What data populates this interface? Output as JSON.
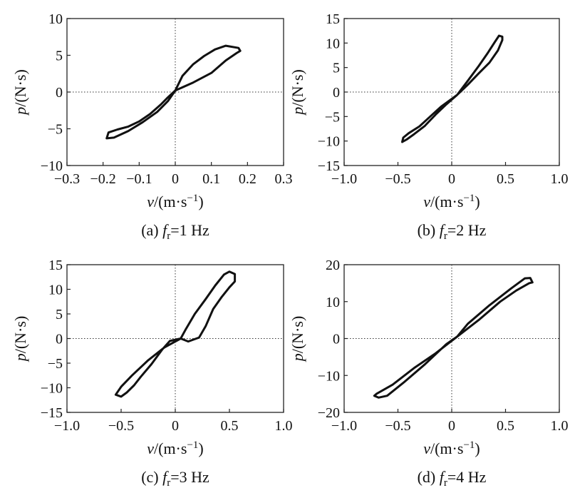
{
  "chart_data": [
    {
      "type": "line",
      "caption_prefix": "(a) ",
      "caption_symbol": "f",
      "caption_sub": "r",
      "caption_value": "=1 Hz",
      "ylabel_var": "p",
      "ylabel_unit": "/(N·s)",
      "xlabel_var": "v",
      "xlabel_unit": "/(m·s",
      "xlabel_exp": "−1",
      "xlabel_close": ")",
      "xlim": [
        -0.3,
        0.3
      ],
      "ylim": [
        -10,
        10
      ],
      "xticks": [
        -0.3,
        -0.2,
        -0.1,
        0,
        0.1,
        0.2,
        0.3
      ],
      "xtick_labels": [
        "−0.3",
        "−0.2",
        "−0.1",
        "0",
        "0.1",
        "0.2",
        "0.3"
      ],
      "yticks": [
        -10,
        -5,
        0,
        5,
        10
      ],
      "ytick_labels": [
        "−10",
        "−5",
        "0",
        "5",
        "10"
      ],
      "grid": false,
      "series": [
        {
          "values": [
            [
              0.0,
              0.2
            ],
            [
              0.05,
              1.3
            ],
            [
              0.1,
              2.6
            ],
            [
              0.14,
              4.3
            ],
            [
              0.17,
              5.3
            ],
            [
              0.18,
              5.6
            ],
            [
              0.175,
              6.0
            ],
            [
              0.14,
              6.3
            ],
            [
              0.11,
              5.8
            ],
            [
              0.08,
              4.9
            ],
            [
              0.05,
              3.8
            ],
            [
              0.02,
              2.2
            ],
            [
              0.0,
              0.2
            ],
            [
              -0.02,
              -1.2
            ],
            [
              -0.05,
              -2.7
            ],
            [
              -0.09,
              -4.1
            ],
            [
              -0.13,
              -5.3
            ],
            [
              -0.17,
              -6.2
            ],
            [
              -0.19,
              -6.3
            ],
            [
              -0.185,
              -5.5
            ],
            [
              -0.16,
              -5.1
            ],
            [
              -0.13,
              -4.7
            ],
            [
              -0.1,
              -4.0
            ],
            [
              -0.07,
              -3.0
            ],
            [
              -0.04,
              -1.7
            ],
            [
              -0.02,
              -0.7
            ],
            [
              0.0,
              0.2
            ]
          ]
        }
      ]
    },
    {
      "type": "line",
      "caption_prefix": "(b) ",
      "caption_symbol": "f",
      "caption_sub": "r",
      "caption_value": "=2 Hz",
      "ylabel_var": "p",
      "ylabel_unit": "/(N·s)",
      "xlabel_var": "v",
      "xlabel_unit": "/(m·s",
      "xlabel_exp": "−1",
      "xlabel_close": ")",
      "xlim": [
        -1.0,
        1.0
      ],
      "ylim": [
        -15,
        15
      ],
      "xticks": [
        -1.0,
        -0.5,
        0,
        0.5,
        1.0
      ],
      "xtick_labels": [
        "−1.0",
        "−0.5",
        "0",
        "0.5",
        "1.0"
      ],
      "yticks": [
        -15,
        -10,
        -5,
        0,
        5,
        10,
        15
      ],
      "ytick_labels": [
        "−15",
        "−10",
        "−5",
        "0",
        "5",
        "10",
        "15"
      ],
      "grid": false,
      "series": [
        {
          "values": [
            [
              0.05,
              -0.6
            ],
            [
              0.15,
              1.5
            ],
            [
              0.25,
              3.8
            ],
            [
              0.35,
              6.0
            ],
            [
              0.43,
              8.5
            ],
            [
              0.47,
              10.6
            ],
            [
              0.47,
              11.3
            ],
            [
              0.44,
              11.5
            ],
            [
              0.4,
              10.2
            ],
            [
              0.33,
              7.8
            ],
            [
              0.25,
              5.3
            ],
            [
              0.15,
              2.3
            ],
            [
              0.05,
              -0.6
            ],
            [
              -0.05,
              -2.5
            ],
            [
              -0.15,
              -4.6
            ],
            [
              -0.25,
              -6.9
            ],
            [
              -0.35,
              -8.6
            ],
            [
              -0.42,
              -9.7
            ],
            [
              -0.46,
              -10.2
            ],
            [
              -0.45,
              -9.3
            ],
            [
              -0.4,
              -8.4
            ],
            [
              -0.3,
              -7.0
            ],
            [
              -0.2,
              -5.0
            ],
            [
              -0.1,
              -3.0
            ],
            [
              0.0,
              -1.4
            ],
            [
              0.05,
              -0.6
            ]
          ]
        }
      ]
    },
    {
      "type": "line",
      "caption_prefix": "(c) ",
      "caption_symbol": "f",
      "caption_sub": "r",
      "caption_value": "=3 Hz",
      "ylabel_var": "p",
      "ylabel_unit": "/(N·s)",
      "xlabel_var": "v",
      "xlabel_unit": "/(m·s",
      "xlabel_exp": "−1",
      "xlabel_close": ")",
      "xlim": [
        -1.0,
        1.0
      ],
      "ylim": [
        -15,
        15
      ],
      "xticks": [
        -1.0,
        -0.5,
        0,
        0.5,
        1.0
      ],
      "xtick_labels": [
        "−1.0",
        "−0.5",
        "0",
        "0.5",
        "1.0"
      ],
      "yticks": [
        -15,
        -10,
        -5,
        0,
        5,
        10,
        15
      ],
      "ytick_labels": [
        "−15",
        "−10",
        "−5",
        "0",
        "5",
        "10",
        "15"
      ],
      "grid": false,
      "series": [
        {
          "values": [
            [
              0.05,
              0.0
            ],
            [
              0.1,
              2.0
            ],
            [
              0.18,
              5.0
            ],
            [
              0.28,
              8.0
            ],
            [
              0.37,
              10.8
            ],
            [
              0.45,
              13.0
            ],
            [
              0.5,
              13.6
            ],
            [
              0.55,
              13.1
            ],
            [
              0.55,
              11.6
            ],
            [
              0.5,
              10.4
            ],
            [
              0.43,
              8.5
            ],
            [
              0.35,
              6.0
            ],
            [
              0.28,
              2.5
            ],
            [
              0.22,
              0.2
            ],
            [
              0.12,
              -0.6
            ],
            [
              0.05,
              0.0
            ],
            [
              -0.1,
              -1.8
            ],
            [
              -0.25,
              -4.4
            ],
            [
              -0.4,
              -7.5
            ],
            [
              -0.5,
              -9.8
            ],
            [
              -0.55,
              -11.4
            ],
            [
              -0.5,
              -11.8
            ],
            [
              -0.45,
              -11.0
            ],
            [
              -0.38,
              -9.5
            ],
            [
              -0.32,
              -7.8
            ],
            [
              -0.22,
              -5.2
            ],
            [
              -0.12,
              -2.2
            ],
            [
              -0.05,
              -0.5
            ],
            [
              0.05,
              0.0
            ]
          ]
        }
      ]
    },
    {
      "type": "line",
      "caption_prefix": "(d) ",
      "caption_symbol": "f",
      "caption_sub": "r",
      "caption_value": "=4 Hz",
      "ylabel_var": "p",
      "ylabel_unit": "/(N·s)",
      "xlabel_var": "v",
      "xlabel_unit": "/(m·s",
      "xlabel_exp": "−1",
      "xlabel_close": ")",
      "xlim": [
        -1.0,
        1.0
      ],
      "ylim": [
        -20,
        20
      ],
      "xticks": [
        -1.0,
        -0.5,
        0,
        0.5,
        1.0
      ],
      "xtick_labels": [
        "−1.0",
        "−0.5",
        "0",
        "0.5",
        "1.0"
      ],
      "yticks": [
        -20,
        -10,
        0,
        10,
        20
      ],
      "ytick_labels": [
        "−20",
        "−10",
        "0",
        "10",
        "20"
      ],
      "grid": false,
      "series": [
        {
          "values": [
            [
              0.05,
              0.5
            ],
            [
              0.25,
              5.0
            ],
            [
              0.45,
              10.0
            ],
            [
              0.6,
              13.0
            ],
            [
              0.72,
              15.0
            ],
            [
              0.75,
              15.2
            ],
            [
              0.73,
              16.4
            ],
            [
              0.68,
              16.3
            ],
            [
              0.55,
              13.5
            ],
            [
              0.35,
              9.0
            ],
            [
              0.15,
              4.0
            ],
            [
              0.05,
              0.5
            ],
            [
              -0.15,
              -4.0
            ],
            [
              -0.35,
              -8.0
            ],
            [
              -0.55,
              -12.5
            ],
            [
              -0.7,
              -15.0
            ],
            [
              -0.72,
              -15.5
            ],
            [
              -0.68,
              -16.0
            ],
            [
              -0.6,
              -15.5
            ],
            [
              -0.45,
              -12.0
            ],
            [
              -0.25,
              -7.0
            ],
            [
              -0.05,
              -1.5
            ],
            [
              0.05,
              0.5
            ]
          ]
        }
      ]
    }
  ]
}
